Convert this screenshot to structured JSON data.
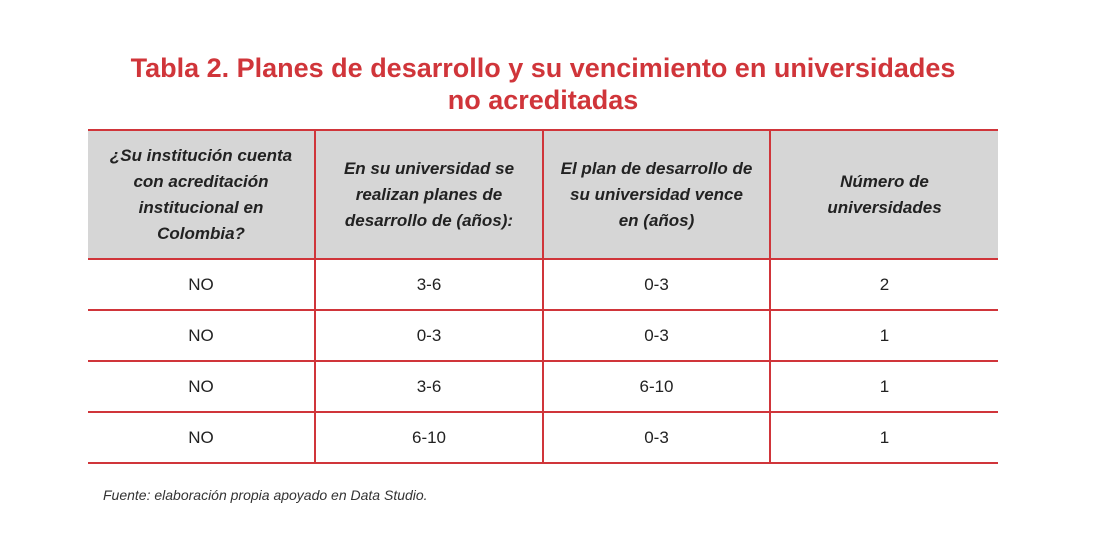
{
  "title": {
    "line1": "Tabla 2. Planes de desarrollo y su vencimiento en universidades",
    "line2": "no acreditadas"
  },
  "table": {
    "headers": [
      "¿Su institución cuenta con acreditación institucional en Colombia?",
      "En su universidad se realizan planes de desarrollo de (años):",
      "El plan de desarrollo de su universidad vence en (años)",
      "Número de universidades"
    ],
    "rows": [
      [
        "NO",
        "3-6",
        "0-3",
        "2"
      ],
      [
        "NO",
        "0-3",
        "0-3",
        "1"
      ],
      [
        "NO",
        "3-6",
        "6-10",
        "1"
      ],
      [
        "NO",
        "6-10",
        "0-3",
        "1"
      ]
    ]
  },
  "source": "Fuente: elaboración propia apoyado en Data Studio.",
  "colors": {
    "accent": "#d0353a",
    "header_bg": "#d6d6d6"
  }
}
